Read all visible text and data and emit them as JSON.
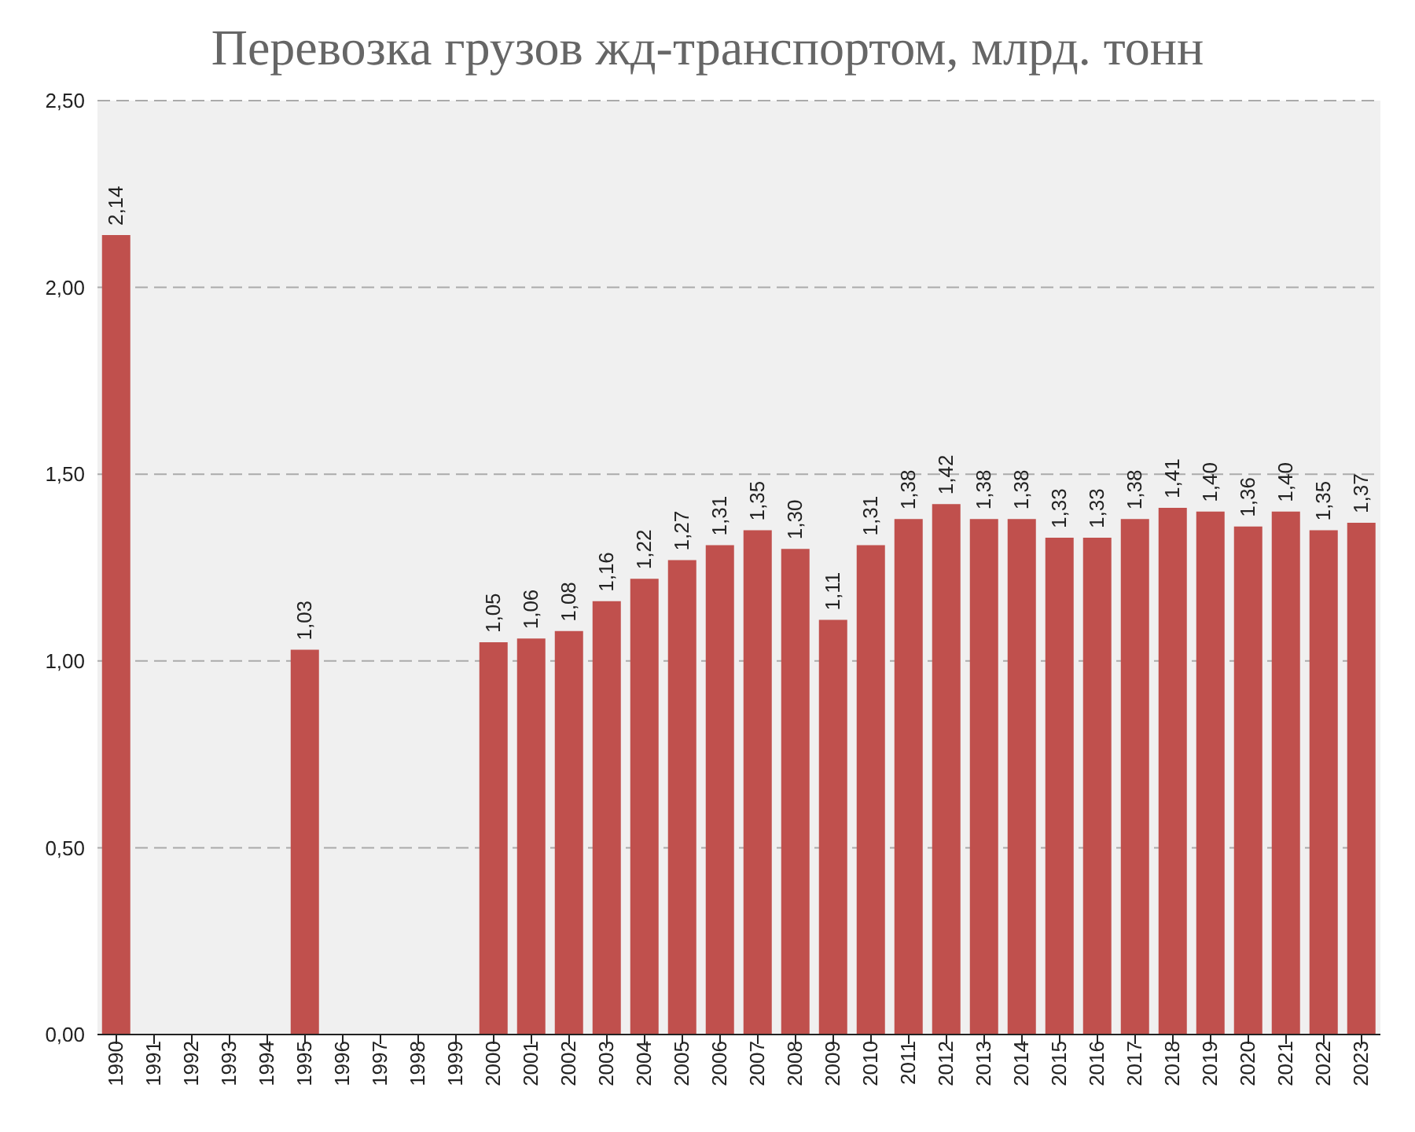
{
  "chart_data": {
    "type": "bar",
    "title": "Перевозка грузов жд-транспортом, млрд. тонн",
    "categories": [
      "1990",
      "1991",
      "1992",
      "1993",
      "1994",
      "1995",
      "1996",
      "1997",
      "1998",
      "1999",
      "2000",
      "2001",
      "2002",
      "2003",
      "2004",
      "2005",
      "2006",
      "2007",
      "2008",
      "2009",
      "2010",
      "2011",
      "2012",
      "2013",
      "2014",
      "2015",
      "2016",
      "2017",
      "2018",
      "2019",
      "2020",
      "2021",
      "2022",
      "2023"
    ],
    "values": [
      2.14,
      null,
      null,
      null,
      null,
      1.03,
      null,
      null,
      null,
      null,
      1.05,
      1.06,
      1.08,
      1.16,
      1.22,
      1.27,
      1.31,
      1.35,
      1.3,
      1.11,
      1.31,
      1.38,
      1.42,
      1.38,
      1.38,
      1.33,
      1.33,
      1.38,
      1.41,
      1.4,
      1.36,
      1.4,
      1.35,
      1.37
    ],
    "value_labels": [
      "2,14",
      null,
      null,
      null,
      null,
      "1,03",
      null,
      null,
      null,
      null,
      "1,05",
      "1,06",
      "1,08",
      "1,16",
      "1,22",
      "1,27",
      "1,31",
      "1,35",
      "1,30",
      "1,11",
      "1,31",
      "1,38",
      "1,42",
      "1,38",
      "1,38",
      "1,33",
      "1,33",
      "1,38",
      "1,41",
      "1,40",
      "1,36",
      "1,40",
      "1,35",
      "1,37"
    ],
    "color": "#c0504d",
    "ylim": [
      0,
      2.5
    ],
    "yticks": [
      {
        "value": 0,
        "label": "0,00"
      },
      {
        "value": 0.5,
        "label": "0,50"
      },
      {
        "value": 1,
        "label": "1,00"
      },
      {
        "value": 1.5,
        "label": "1,50"
      },
      {
        "value": 2,
        "label": "2,00"
      },
      {
        "value": 2.5,
        "label": "2,50"
      }
    ],
    "grid": "y",
    "legend": false
  }
}
